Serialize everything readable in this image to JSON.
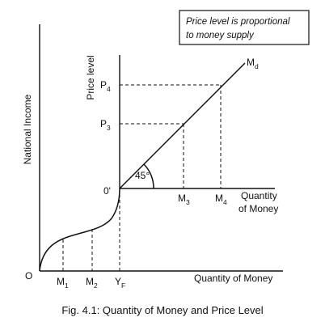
{
  "note": {
    "line1": "Price level is proportional",
    "line2": "to money supply"
  },
  "caption": "Fig. 4.1: Quantity of Money and Price Level",
  "left_panel": {
    "y_axis_label": "National Income",
    "x_axis_label": "Quantity of Money",
    "origin_label": "O",
    "ticks": [
      {
        "main": "M",
        "sub": "1"
      },
      {
        "main": "M",
        "sub": "2"
      },
      {
        "main": "Y",
        "sub": "F"
      }
    ]
  },
  "right_panel": {
    "y_axis_label": "Price level",
    "x_axis_label_line1": "Quantity",
    "x_axis_label_line2": "of Money",
    "origin_label": "0'",
    "angle_label": "45°",
    "line_label": {
      "main": "M",
      "sub": "d"
    },
    "x_ticks": [
      {
        "main": "M",
        "sub": "3"
      },
      {
        "main": "M",
        "sub": "4"
      }
    ],
    "y_ticks": [
      {
        "main": "P",
        "sub": "3"
      },
      {
        "main": "P",
        "sub": "4"
      }
    ]
  }
}
